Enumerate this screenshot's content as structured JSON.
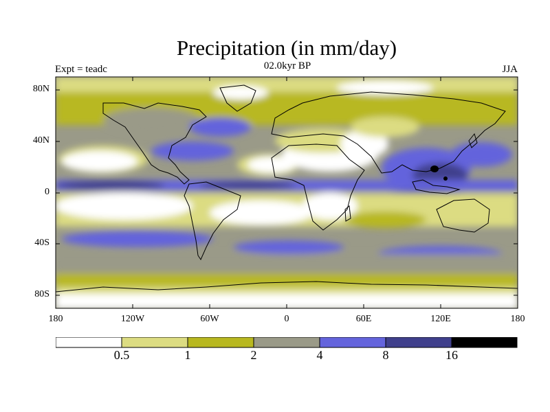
{
  "title": "Precipitation (in mm/day)",
  "experiment_label": "Expt = teadc",
  "period_label": "02.0kyr BP",
  "season_label": "JJA",
  "lat_labels": [
    "80N",
    "40N",
    "0",
    "40S",
    "80S"
  ],
  "lon_labels": [
    "180",
    "120W",
    "60W",
    "0",
    "60E",
    "120E",
    "180"
  ],
  "colorbar": {
    "colors": [
      "#ffffff",
      "#dcdc82",
      "#b8b820",
      "#9a9a88",
      "#6464dc",
      "#40408c",
      "#000000"
    ],
    "boundaries": [
      "0.5",
      "1",
      "2",
      "4",
      "8",
      "16"
    ]
  }
}
